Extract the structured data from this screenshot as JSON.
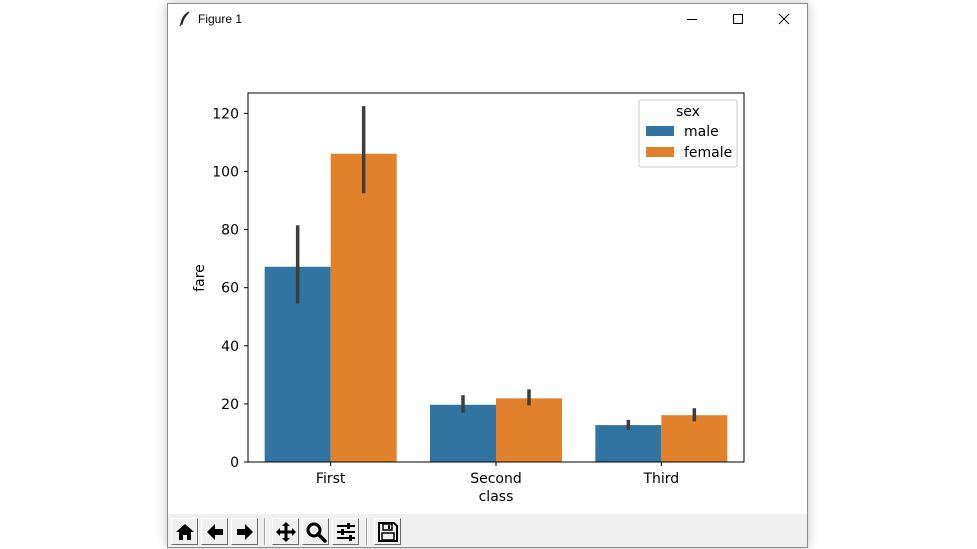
{
  "window": {
    "title": "Figure 1",
    "icon": "feather-icon"
  },
  "toolbar": {
    "buttons": [
      {
        "name": "home-button",
        "icon": "home-icon"
      },
      {
        "name": "back-button",
        "icon": "arrow-left-icon"
      },
      {
        "name": "forward-button",
        "icon": "arrow-right-icon"
      },
      {
        "name": "pan-button",
        "icon": "move-icon"
      },
      {
        "name": "zoom-button",
        "icon": "magnifier-icon"
      },
      {
        "name": "configure-subplots-button",
        "icon": "sliders-icon"
      },
      {
        "name": "save-button",
        "icon": "floppy-disk-icon"
      }
    ]
  },
  "chart_data": {
    "type": "bar",
    "categories": [
      "First",
      "Second",
      "Third"
    ],
    "series": [
      {
        "name": "male",
        "color": "#3274a1",
        "values": [
          67.2,
          19.7,
          12.7
        ],
        "ci": [
          [
            54.5,
            81.5
          ],
          [
            17.0,
            23.0
          ],
          [
            11.0,
            14.5
          ]
        ]
      },
      {
        "name": "female",
        "color": "#e1812c",
        "values": [
          106.1,
          21.9,
          16.1
        ],
        "ci": [
          [
            92.5,
            122.5
          ],
          [
            19.5,
            25.0
          ],
          [
            14.0,
            18.5
          ]
        ]
      }
    ],
    "xlabel": "class",
    "ylabel": "fare",
    "ylim": [
      0,
      127
    ],
    "yticks": [
      0,
      20,
      40,
      60,
      80,
      100,
      120
    ],
    "legend": {
      "title": "sex",
      "position": "top-right"
    },
    "grid": false
  }
}
